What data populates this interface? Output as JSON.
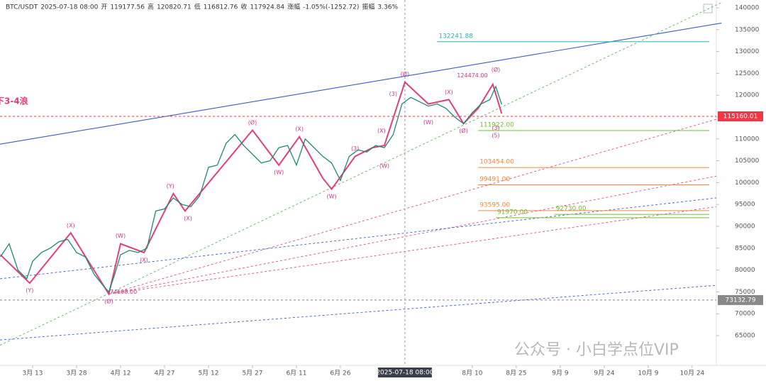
{
  "chart_data": {
    "type": "line",
    "header": [
      "BTC/USDT",
      "2025-07-18 08:00",
      "开",
      "119177.56",
      "高",
      "120820.71",
      "低",
      "116812.76",
      "收",
      "117924.84",
      "涨幅",
      "-1.05%(-1252.72)",
      "振幅",
      "3.36%"
    ],
    "title": "下3-4浪",
    "crosshair": {
      "x": 127,
      "label": "2025-07-18 08:00"
    },
    "watermark": "公众号 · 小白学点位VIP",
    "color": "#1e8a6e",
    "x": [
      -11,
      -8,
      -5,
      -2,
      0,
      3,
      6,
      9,
      12,
      15,
      18,
      21,
      24,
      26,
      28,
      30,
      33,
      36,
      39,
      42,
      45,
      48,
      51,
      54,
      57,
      60,
      63,
      66,
      69,
      72,
      75,
      78,
      81,
      84,
      87,
      90,
      93,
      96,
      99,
      102,
      105,
      108,
      111,
      114,
      117,
      120,
      123,
      126,
      129,
      132,
      135,
      138,
      141,
      144,
      147,
      150,
      153,
      156,
      158,
      160
    ],
    "values": [
      83000,
      86000,
      80000,
      78000,
      82000,
      84000,
      85000,
      86500,
      87000,
      84000,
      83000,
      79000,
      76500,
      75000,
      79000,
      83500,
      84500,
      84000,
      85000,
      93500,
      94000,
      96500,
      95000,
      94500,
      97000,
      103500,
      104000,
      109000,
      111000,
      108500,
      106500,
      104500,
      105000,
      108000,
      108500,
      104000,
      110000,
      108000,
      106000,
      104500,
      100500,
      106000,
      107500,
      107000,
      108500,
      108000,
      111000,
      118000,
      119500,
      118500,
      117500,
      118000,
      117000,
      115000,
      113500,
      116000,
      118000,
      119000,
      122000,
      117900
    ],
    "xlim": [
      -11.13,
      233.25
    ],
    "ylim": [
      58182,
      141786
    ],
    "xticks": [
      {
        "value": 0,
        "label": "3月 13"
      },
      {
        "value": 15,
        "label": "3月 28"
      },
      {
        "value": 30,
        "label": "4月 12"
      },
      {
        "value": 45,
        "label": "4月 27"
      },
      {
        "value": 60,
        "label": "5月 12"
      },
      {
        "value": 75,
        "label": "5月 27"
      },
      {
        "value": 90,
        "label": "6月 11"
      },
      {
        "value": 105,
        "label": "6月 26"
      },
      {
        "value": 150,
        "label": "8月 10"
      },
      {
        "value": 165,
        "label": "8月 25"
      },
      {
        "value": 180,
        "label": "9月 9"
      },
      {
        "value": 195,
        "label": "9月 24"
      },
      {
        "value": 210,
        "label": "10月 9"
      },
      {
        "value": 225,
        "label": "10月 24"
      }
    ],
    "yticks": [
      65000,
      70000,
      75000,
      80000,
      85000,
      90000,
      95000,
      100000,
      105000,
      110000,
      115000,
      120000,
      125000,
      130000,
      135000,
      140000
    ],
    "price_tags": [
      {
        "value": 115160.01,
        "label": "115160.01",
        "color": "#f23645"
      },
      {
        "value": 73132.79,
        "label": "73132.79",
        "color": "#888888"
      }
    ],
    "levels": [
      {
        "value": 132241.88,
        "label": "132241.88",
        "from": 138,
        "color": "#26b5b0"
      },
      {
        "value": 111922,
        "label": "111922.00",
        "from": 152,
        "color": "#6fbf3a"
      },
      {
        "value": 103454,
        "label": "103454.00",
        "from": 152,
        "color": "#f0883e"
      },
      {
        "value": 99491,
        "label": "99491.00",
        "from": 152,
        "color": "#f0883e"
      },
      {
        "value": 93595,
        "label": "93595.00",
        "from": 152,
        "color": "#f0883e"
      },
      {
        "value": 92730,
        "label": "92730.00",
        "from": 178,
        "color": "#6fbf3a"
      },
      {
        "value": 91970,
        "label": "91970.00",
        "from": 158,
        "color": "#6fbf3a"
      }
    ],
    "trendlines": [
      {
        "points": [
          [
            -11.13,
            108800
          ],
          [
            235,
            136500
          ]
        ],
        "color": "#3a5bc7",
        "dash": false
      },
      {
        "points": [
          [
            -11.13,
            62800
          ],
          [
            235,
            141200
          ]
        ],
        "color": "#5cb85c",
        "dash": true
      },
      {
        "points": [
          [
            26,
            74500
          ],
          [
            233.25,
            114500
          ]
        ],
        "color": "#e04f7a",
        "dash": true
      },
      {
        "points": [
          [
            26,
            74500
          ],
          [
            233.25,
            101500
          ]
        ],
        "color": "#e04f7a",
        "dash": true
      },
      {
        "points": [
          [
            26,
            74500
          ],
          [
            233.25,
            94500
          ]
        ],
        "color": "#e04f7a",
        "dash": true
      },
      {
        "points": [
          [
            -11.13,
            78000
          ],
          [
            233.25,
            96500
          ]
        ],
        "color": "#3a5bc7",
        "dash": true
      },
      {
        "points": [
          [
            -11.13,
            64000
          ],
          [
            233.25,
            76500
          ]
        ],
        "color": "#3a5bc7",
        "dash": true
      }
    ],
    "wave": {
      "color": "#e0407a",
      "points": [
        [
          -11,
          83500
        ],
        [
          -1,
          77000
        ],
        [
          13,
          88500
        ],
        [
          26,
          74500
        ],
        [
          30,
          86000
        ],
        [
          38,
          84000
        ],
        [
          48,
          97500
        ],
        [
          52,
          93500
        ],
        [
          75,
          112000
        ],
        [
          84,
          104000
        ],
        [
          91,
          110500
        ],
        [
          99,
          101000
        ],
        [
          102,
          98500
        ],
        [
          110,
          106000
        ],
        [
          116,
          108000
        ],
        [
          120,
          108500
        ],
        [
          127,
          123000
        ],
        [
          135,
          118000
        ],
        [
          142,
          119000
        ],
        [
          147,
          113500
        ],
        [
          152,
          117000
        ],
        [
          157,
          122500
        ],
        [
          160,
          115800
        ]
      ]
    },
    "annotations": [
      {
        "text": "(Y)",
        "x": -1,
        "y": 75300
      },
      {
        "text": "(X)",
        "x": 13,
        "y": 90200
      },
      {
        "text": "(Ø)",
        "x": 26,
        "y": 72800
      },
      {
        "text": "74508.00",
        "x": 31,
        "y": 75000
      },
      {
        "text": "(W)",
        "x": 30,
        "y": 87800
      },
      {
        "text": "(X)",
        "x": 38,
        "y": 82300
      },
      {
        "text": "(Y)",
        "x": 47,
        "y": 99200
      },
      {
        "text": "(X)",
        "x": 53,
        "y": 91800
      },
      {
        "text": "(Ø)",
        "x": 75,
        "y": 113700
      },
      {
        "text": "(W)",
        "x": 84,
        "y": 102300
      },
      {
        "text": "(X)",
        "x": 91,
        "y": 112200
      },
      {
        "text": "(W)",
        "x": 102,
        "y": 96800
      },
      {
        "text": "(3)",
        "x": 110,
        "y": 107800
      },
      {
        "text": "(X)",
        "x": 119,
        "y": 111800
      },
      {
        "text": "(W)",
        "x": 120,
        "y": 103800
      },
      {
        "text": "(3)",
        "x": 123,
        "y": 120300
      },
      {
        "text": "(Ø)",
        "x": 127,
        "y": 124800
      },
      {
        "text": "(W)",
        "x": 135,
        "y": 113800
      },
      {
        "text": "(X)",
        "x": 142,
        "y": 120700
      },
      {
        "text": "(Ø)",
        "x": 147,
        "y": 111800
      },
      {
        "text": "124474.00",
        "x": 150,
        "y": 124500
      },
      {
        "text": "(Ø)",
        "x": 158,
        "y": 125800
      },
      {
        "text": "(3)",
        "x": 158,
        "y": 112500
      },
      {
        "text": "(5)",
        "x": 158,
        "y": 110800
      }
    ]
  }
}
